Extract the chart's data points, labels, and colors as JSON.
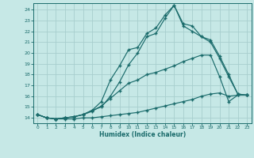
{
  "title": "",
  "xlabel": "Humidex (Indice chaleur)",
  "xlim": [
    -0.5,
    23.5
  ],
  "ylim": [
    13.5,
    24.6
  ],
  "xticks": [
    0,
    1,
    2,
    3,
    4,
    5,
    6,
    7,
    8,
    9,
    10,
    11,
    12,
    13,
    14,
    15,
    16,
    17,
    18,
    19,
    20,
    21,
    22,
    23
  ],
  "yticks": [
    14,
    15,
    16,
    17,
    18,
    19,
    20,
    21,
    22,
    23,
    24
  ],
  "bg_color": "#c6e8e6",
  "grid_color": "#a8cece",
  "line_color": "#1a6b6b",
  "line1_x": [
    0,
    1,
    2,
    3,
    4,
    5,
    6,
    7,
    8,
    9,
    10,
    11,
    12,
    13,
    14,
    15,
    16,
    17,
    18,
    19,
    20,
    21,
    22,
    23
  ],
  "line1_y": [
    14.3,
    14.0,
    13.9,
    13.9,
    13.9,
    14.0,
    14.0,
    14.1,
    14.2,
    14.3,
    14.4,
    14.5,
    14.7,
    14.9,
    15.1,
    15.3,
    15.5,
    15.7,
    16.0,
    16.2,
    16.3,
    16.0,
    16.1,
    16.1
  ],
  "line2_x": [
    0,
    1,
    2,
    3,
    4,
    5,
    6,
    7,
    8,
    9,
    10,
    11,
    12,
    13,
    14,
    15,
    16,
    17,
    18,
    19,
    20,
    21,
    22,
    23
  ],
  "line2_y": [
    14.3,
    14.0,
    13.9,
    14.0,
    14.1,
    14.3,
    14.6,
    15.1,
    15.8,
    16.5,
    17.2,
    17.5,
    18.0,
    18.2,
    18.5,
    18.8,
    19.2,
    19.5,
    19.8,
    19.8,
    17.8,
    15.5,
    16.1,
    16.1
  ],
  "line3_x": [
    0,
    1,
    2,
    3,
    4,
    5,
    6,
    7,
    8,
    9,
    10,
    11,
    12,
    13,
    14,
    15,
    16,
    17,
    18,
    19,
    20,
    21,
    22,
    23
  ],
  "line3_y": [
    14.3,
    14.0,
    13.9,
    14.0,
    14.1,
    14.3,
    14.7,
    15.5,
    17.5,
    18.8,
    20.3,
    20.5,
    21.8,
    22.3,
    23.5,
    24.4,
    22.7,
    22.5,
    21.5,
    21.2,
    19.7,
    18.0,
    16.2,
    16.1
  ],
  "line4_x": [
    0,
    1,
    2,
    3,
    4,
    5,
    6,
    7,
    8,
    9,
    10,
    11,
    12,
    13,
    14,
    15,
    16,
    17,
    18,
    19,
    20,
    21,
    22,
    23
  ],
  "line4_y": [
    14.3,
    14.0,
    13.9,
    14.0,
    14.1,
    14.3,
    14.7,
    15.0,
    16.0,
    17.3,
    18.9,
    20.0,
    21.5,
    21.8,
    23.2,
    24.4,
    22.5,
    22.0,
    21.5,
    21.0,
    19.5,
    17.8,
    16.2,
    16.1
  ],
  "figsize": [
    3.2,
    2.0
  ],
  "dpi": 100
}
